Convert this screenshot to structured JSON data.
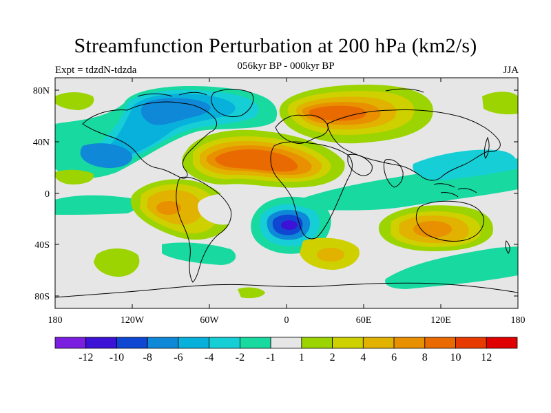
{
  "title": "Streamfunction Perturbation at 200 hPa (km2/s)",
  "subtitle": "056kyr BP - 000kyr BP",
  "experiment": "Expt = tdzdN-tdzda",
  "season": "JJA",
  "lat_ticks": [
    "80N",
    "40N",
    "0",
    "40S",
    "80S"
  ],
  "lon_ticks": [
    "180",
    "120W",
    "60W",
    "0",
    "60E",
    "120E",
    "180"
  ],
  "colorbar": {
    "colors": [
      "#7a1fe0",
      "#3b12d6",
      "#0f46d2",
      "#0f88d8",
      "#08b0dc",
      "#16cfd6",
      "#18d9a0",
      "#e6e6e6",
      "#9bd400",
      "#cfd000",
      "#e1b200",
      "#e99000",
      "#e96a00",
      "#e63a00",
      "#e00000"
    ],
    "labels": [
      "-12",
      "-10",
      "-8",
      "-6",
      "-4",
      "-2",
      "-1",
      "1",
      "2",
      "4",
      "6",
      "8",
      "10",
      "12"
    ]
  },
  "coast_color": "#000000"
}
